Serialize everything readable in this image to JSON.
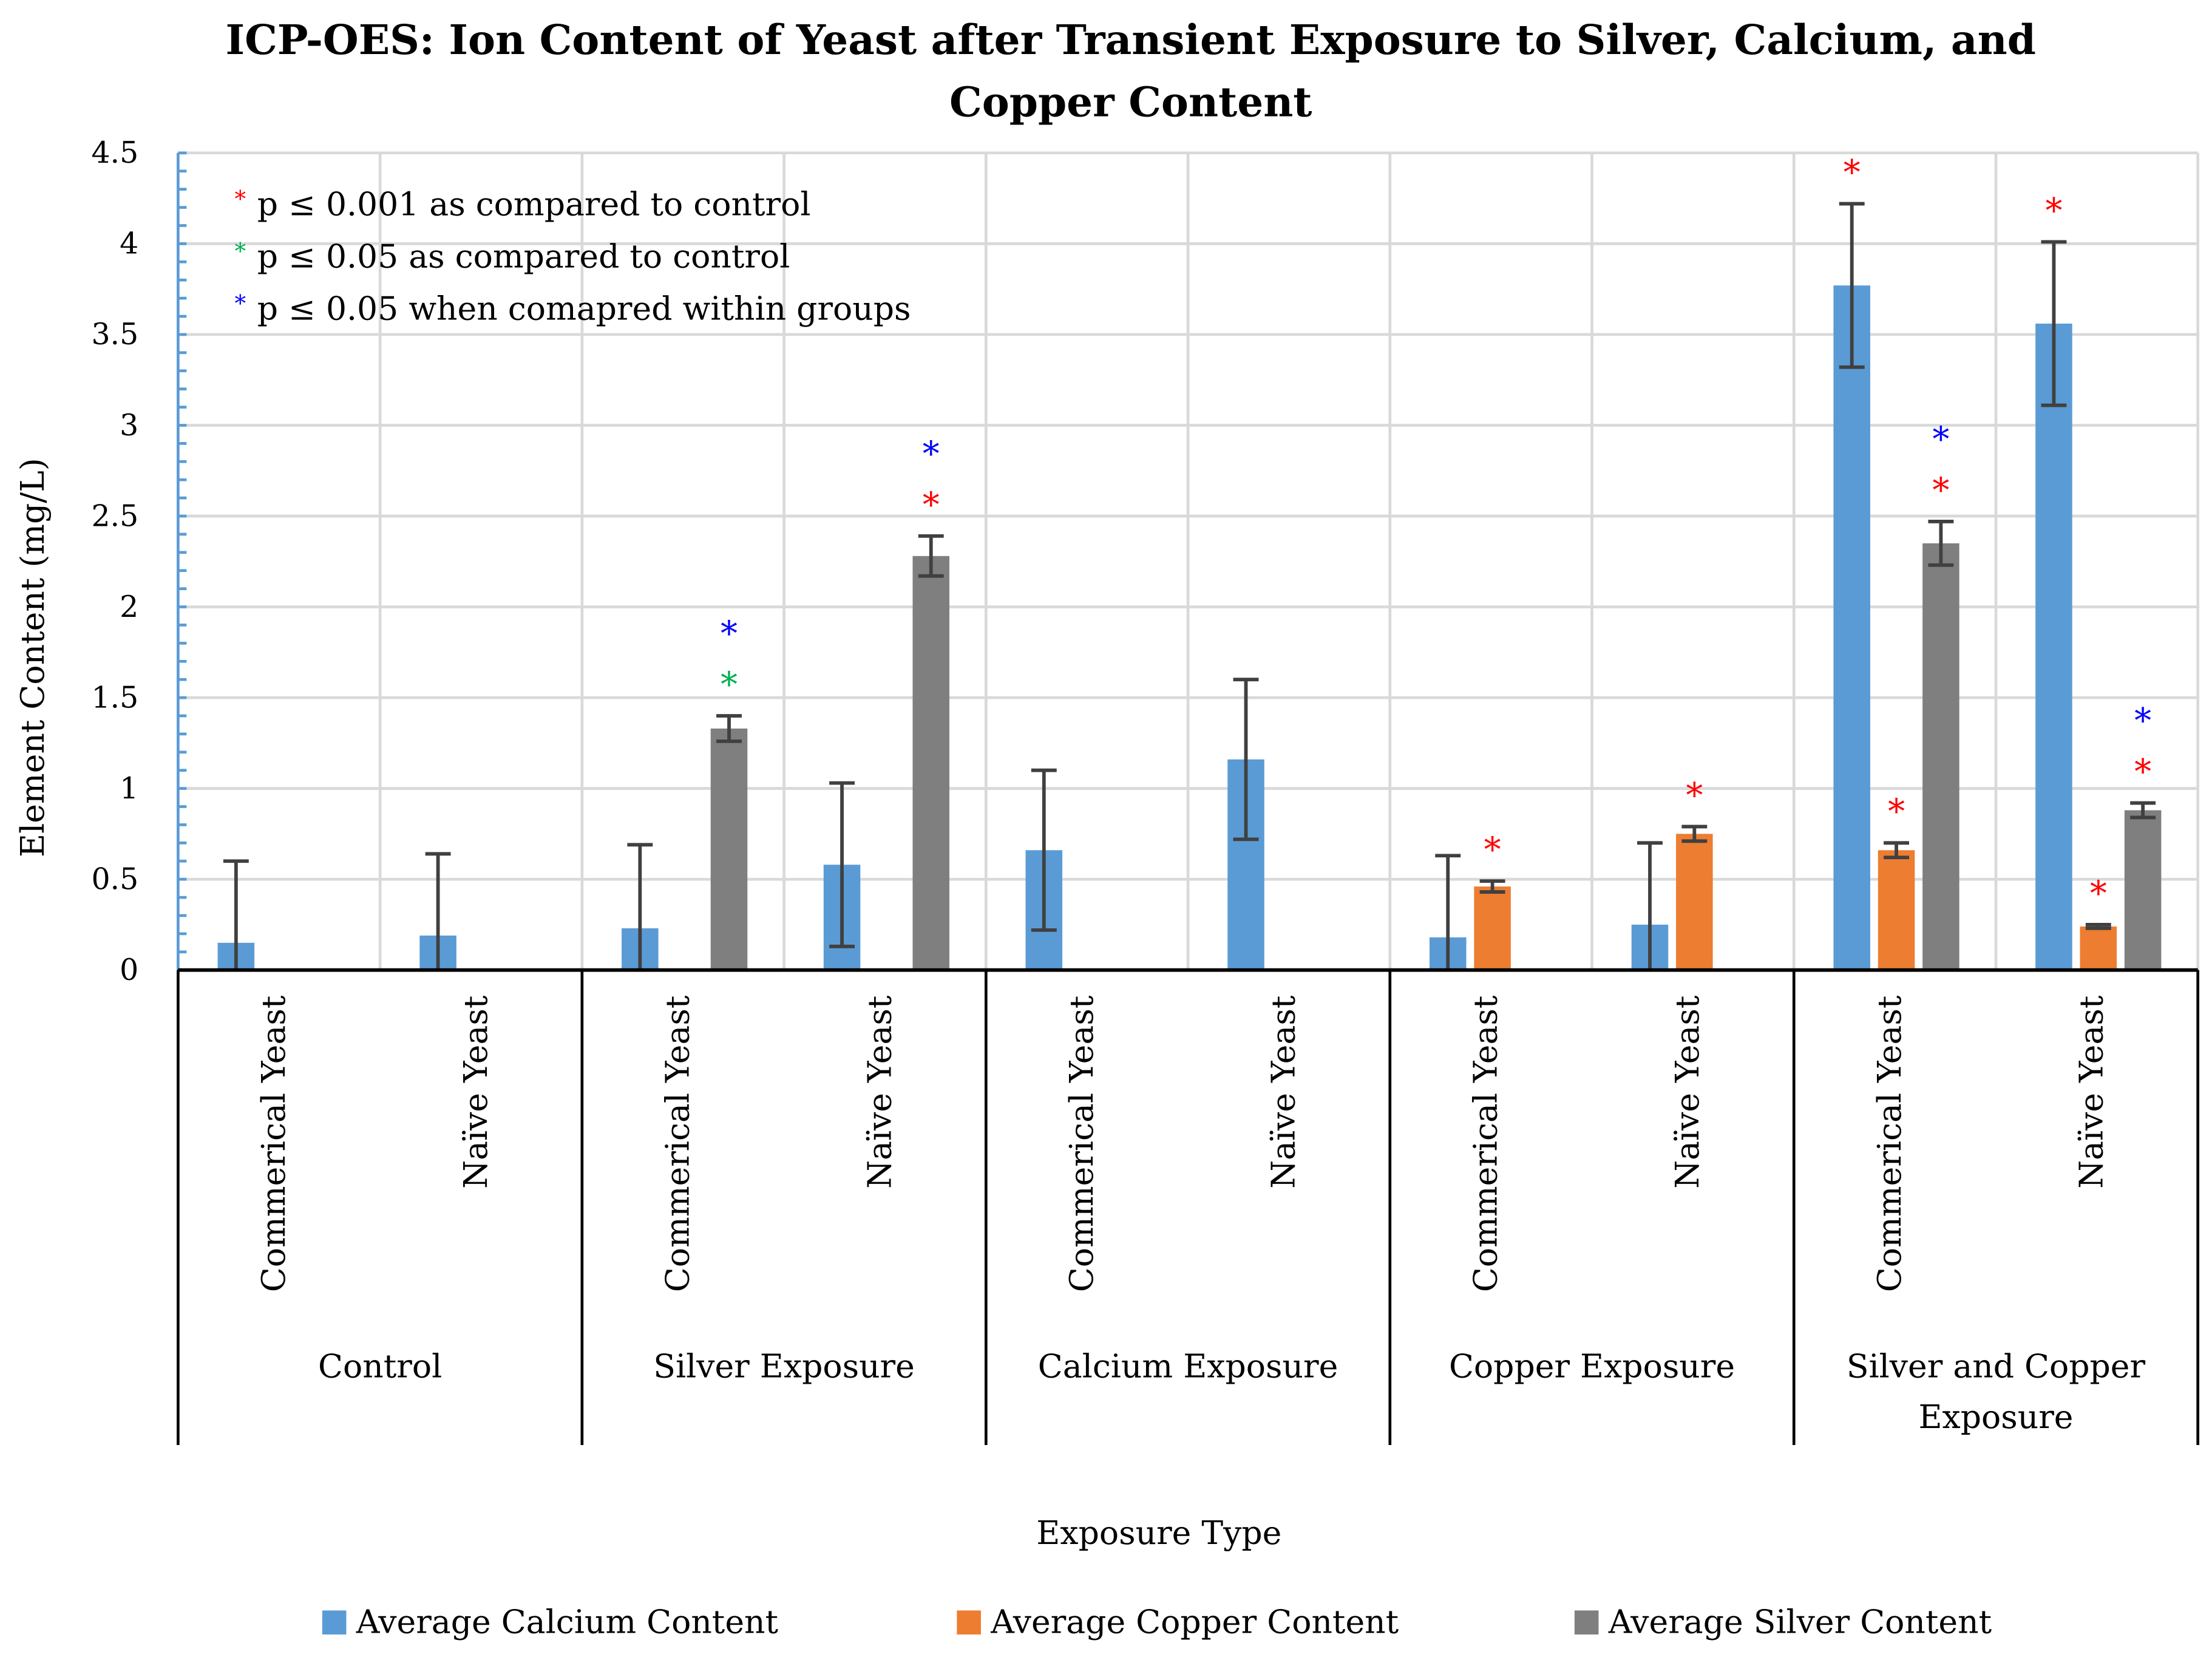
{
  "chart_data": {
    "type": "bar",
    "title": "ICP-OES: Ion Content of Yeast after Transient Exposure to Silver, Calcium, and",
    "title_line2": "Copper Content",
    "xlabel": "Exposure Type",
    "ylabel": "Element Content (mg/L)",
    "ylim": [
      0,
      4.5
    ],
    "yticks": [
      "0",
      "0.5",
      "1",
      "1.5",
      "2",
      "2.5",
      "3",
      "3.5",
      "4",
      "4.5"
    ],
    "grid": true,
    "legend_position": "bottom",
    "groups": [
      {
        "label": "Control",
        "label2": ""
      },
      {
        "label": "Silver Exposure",
        "label2": ""
      },
      {
        "label": "Calcium Exposure",
        "label2": ""
      },
      {
        "label": "Copper Exposure",
        "label2": ""
      },
      {
        "label": "Silver and Copper",
        "label2": "Exposure"
      }
    ],
    "subcategories": [
      "Commerical Yeast",
      "Naïve Yeast"
    ],
    "series": [
      {
        "name": "Average Calcium Content",
        "color": "#5b9bd5",
        "values": [
          0.15,
          0.19,
          0.23,
          0.58,
          0.66,
          1.16,
          0.18,
          0.25,
          3.77,
          3.56
        ],
        "errors": [
          0.45,
          0.45,
          0.46,
          0.45,
          0.44,
          0.44,
          0.45,
          0.45,
          0.45,
          0.45
        ]
      },
      {
        "name": "Average Copper Content",
        "color": "#ed7d31",
        "values": [
          null,
          null,
          null,
          null,
          null,
          null,
          0.46,
          0.75,
          0.66,
          0.24
        ],
        "errors": [
          null,
          null,
          null,
          null,
          null,
          null,
          0.03,
          0.04,
          0.04,
          0.01
        ]
      },
      {
        "name": "Average Silver Content",
        "color": "#7f7f7f",
        "values": [
          null,
          null,
          1.33,
          2.28,
          null,
          null,
          null,
          null,
          2.35,
          0.88
        ],
        "errors": [
          null,
          null,
          0.07,
          0.11,
          null,
          null,
          null,
          null,
          0.12,
          0.04
        ]
      }
    ],
    "significance_legend": [
      {
        "color": "#ff0000",
        "text": "p ≤ 0.001 as compared to control"
      },
      {
        "color": "#00b050",
        "text": "p ≤ 0.05 as compared to control"
      },
      {
        "color": "#0000ff",
        "text": "p ≤ 0.05 when comapred within groups"
      }
    ],
    "significance_marks": [
      {
        "bar": 3,
        "series": 2,
        "colors": [
          "#00b050",
          "#0000ff"
        ]
      },
      {
        "bar": 4,
        "series": 2,
        "colors": [
          "#ff0000",
          "#0000ff"
        ]
      },
      {
        "bar": 7,
        "series": 1,
        "colors": [
          "#ff0000"
        ]
      },
      {
        "bar": 8,
        "series": 1,
        "colors": [
          "#ff0000"
        ]
      },
      {
        "bar": 9,
        "series": 0,
        "colors": [
          "#ff0000"
        ]
      },
      {
        "bar": 9,
        "series": 1,
        "colors": [
          "#ff0000"
        ]
      },
      {
        "bar": 9,
        "series": 2,
        "colors": [
          "#ff0000",
          "#0000ff"
        ]
      },
      {
        "bar": 10,
        "series": 0,
        "colors": [
          "#ff0000"
        ]
      },
      {
        "bar": 10,
        "series": 1,
        "colors": [
          "#ff0000"
        ]
      },
      {
        "bar": 10,
        "series": 2,
        "colors": [
          "#ff0000",
          "#0000ff"
        ]
      }
    ],
    "asterisk": "*"
  }
}
